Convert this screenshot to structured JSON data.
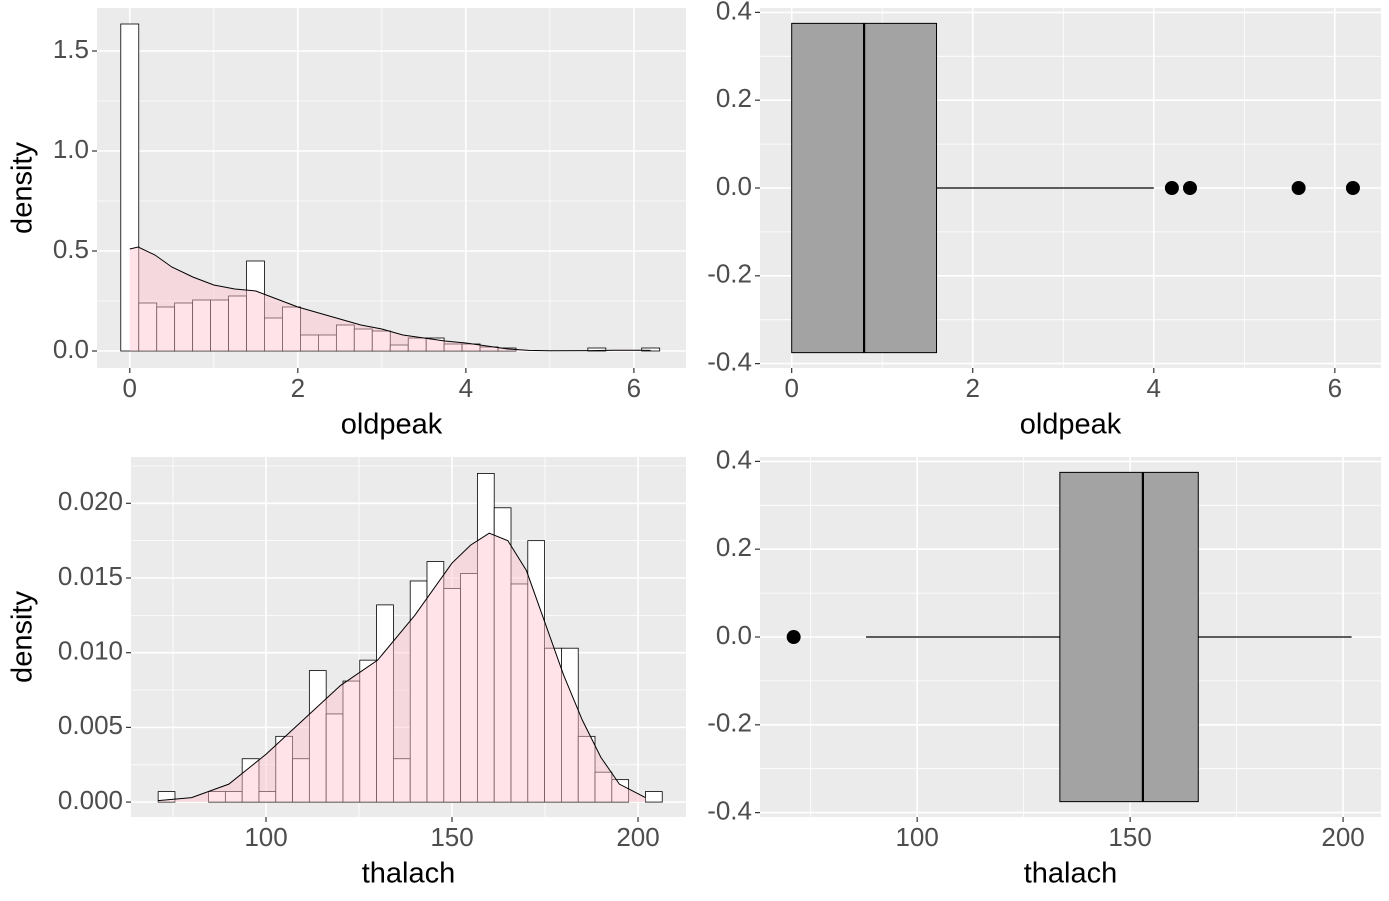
{
  "chart_data": [
    {
      "type": "histogram",
      "x_label": "oldpeak",
      "y_label": "density",
      "bins": [
        -0.107,
        0.107,
        0.321,
        0.534,
        0.748,
        0.962,
        1.176,
        1.39,
        1.603,
        1.817,
        2.031,
        2.245,
        2.459,
        2.672,
        2.886,
        3.1,
        3.314,
        3.528,
        3.741,
        3.955,
        4.169,
        4.383,
        4.597,
        4.81,
        5.024,
        5.238,
        5.452,
        5.666,
        5.879,
        6.093,
        6.307
      ],
      "values": [
        1.635,
        0.24,
        0.22,
        0.24,
        0.255,
        0.255,
        0.275,
        0.45,
        0.165,
        0.22,
        0.08,
        0.08,
        0.13,
        0.11,
        0.1,
        0.03,
        0.065,
        0.065,
        0.035,
        0.035,
        0.02,
        0.015,
        0,
        0,
        0,
        0,
        0.015,
        0,
        0,
        0.015
      ],
      "color": "#ffffff",
      "density_color": "#ffc0cb",
      "density": {
        "x": [
          0,
          0.1,
          0.3,
          0.5,
          0.75,
          1,
          1.25,
          1.5,
          1.75,
          2,
          2.25,
          2.5,
          2.75,
          3,
          3.25,
          3.5,
          3.75,
          4,
          4.25,
          4.5,
          4.75,
          5,
          5.5,
          5.75,
          6,
          6.2
        ],
        "values": [
          0.51,
          0.52,
          0.48,
          0.42,
          0.37,
          0.33,
          0.31,
          0.3,
          0.26,
          0.22,
          0.19,
          0.16,
          0.13,
          0.11,
          0.08,
          0.065,
          0.05,
          0.04,
          0.025,
          0.01,
          0.003,
          0.001,
          0.002,
          0.004,
          0.004,
          0.003
        ]
      },
      "xlim": [
        -0.39,
        6.62
      ],
      "xticks": [
        0,
        2,
        4,
        6
      ],
      "ylim": [
        -0.085,
        1.715
      ],
      "yticks": [
        {
          "value": 0,
          "label": "0.0"
        },
        {
          "value": 0.5,
          "label": "0.5"
        },
        {
          "value": 1,
          "label": "1.0"
        },
        {
          "value": 1.5,
          "label": "1.5"
        }
      ],
      "grid": true
    },
    {
      "type": "boxplot",
      "x_label": "oldpeak",
      "color": "#a3a3a3",
      "whisker_low": 0,
      "q1": 0,
      "median": 0.8,
      "q3": 1.6,
      "whisker_high": 4.0,
      "outliers": [
        4.2,
        4.4,
        5.6,
        6.2
      ],
      "xlim": [
        -0.35,
        6.51
      ],
      "xticks": [
        0,
        2,
        4,
        6
      ],
      "ylim": [
        -0.41,
        0.41
      ],
      "yticks": [
        -0.4,
        -0.2,
        {
          "value": 0,
          "label": "0.0"
        },
        0.2,
        0.4
      ],
      "grid": true
    },
    {
      "type": "histogram",
      "x_label": "thalach",
      "y_label": "density",
      "bins": [
        71,
        75.52,
        80.03,
        84.55,
        89.07,
        93.59,
        98.1,
        102.62,
        107.14,
        111.65,
        116.17,
        120.69,
        125.2,
        129.72,
        134.24,
        138.76,
        143.27,
        147.79,
        152.31,
        156.82,
        161.34,
        165.86,
        170.37,
        174.89,
        179.41,
        183.93,
        188.44,
        192.96,
        197.48,
        201.99,
        206.51
      ],
      "values": [
        0.0007,
        0,
        0,
        0.0007,
        0.0007,
        0.0029,
        0.0007,
        0.0044,
        0.0029,
        0.0088,
        0.0059,
        0.0081,
        0.0095,
        0.0132,
        0.0029,
        0.0148,
        0.0161,
        0.0143,
        0.0153,
        0.022,
        0.0197,
        0.0146,
        0.0175,
        0.0103,
        0.0103,
        0.0044,
        0.002,
        0.0015,
        0,
        0.0007
      ],
      "color": "#ffffff",
      "density_color": "#ffc0cb",
      "density": {
        "x": [
          71,
          80,
          90,
          100,
          110,
          120,
          130,
          140,
          150,
          155,
          160,
          165,
          170,
          175,
          180,
          185,
          190,
          195,
          202
        ],
        "values": [
          0.0001,
          0.0003,
          0.0012,
          0.0032,
          0.0055,
          0.0078,
          0.0095,
          0.0125,
          0.016,
          0.0172,
          0.018,
          0.0175,
          0.0155,
          0.012,
          0.0085,
          0.0055,
          0.003,
          0.0012,
          0.0003
        ]
      },
      "xlim": [
        63.7,
        212.9
      ],
      "xticks": [
        100,
        150,
        200
      ],
      "ylim": [
        -0.001,
        0.0231
      ],
      "yticks": [
        {
          "value": 0,
          "label": "0.000"
        },
        {
          "value": 0.005,
          "label": "0.005"
        },
        {
          "value": 0.01,
          "label": "0.010"
        },
        {
          "value": 0.015,
          "label": "0.015"
        },
        {
          "value": 0.02,
          "label": "0.020"
        }
      ],
      "grid": true
    },
    {
      "type": "boxplot",
      "x_label": "thalach",
      "color": "#a3a3a3",
      "whisker_low": 88,
      "q1": 133.5,
      "median": 153,
      "q3": 166,
      "whisker_high": 202,
      "outliers": [
        71
      ],
      "xlim": [
        63.1,
        208.9
      ],
      "xticks": [
        100,
        150,
        200
      ],
      "ylim": [
        -0.41,
        0.41
      ],
      "yticks": [
        -0.4,
        -0.2,
        {
          "value": 0,
          "label": "0.0"
        },
        0.2,
        0.4
      ],
      "grid": true
    }
  ]
}
